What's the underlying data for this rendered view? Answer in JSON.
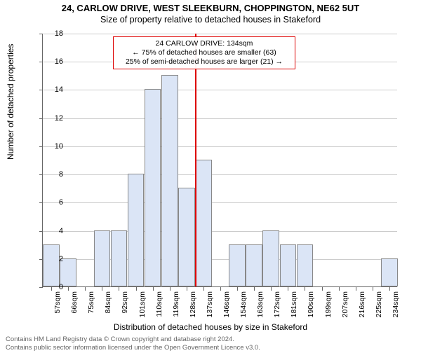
{
  "title": "24, CARLOW DRIVE, WEST SLEEKBURN, CHOPPINGTON, NE62 5UT",
  "subtitle": "Size of property relative to detached houses in Stakeford",
  "ylabel": "Number of detached properties",
  "xlabel": "Distribution of detached houses by size in Stakeford",
  "footer_line1": "Contains HM Land Registry data © Crown copyright and database right 2024.",
  "footer_line2": "Contains public sector information licensed under the Open Government Licence v3.0.",
  "chart": {
    "type": "histogram",
    "background_color": "#ffffff",
    "grid_color": "#cccccc",
    "axis_color": "#666666",
    "bar_fill": "#dbe5f6",
    "bar_border": "#888888",
    "ref_color": "#dd0000",
    "ylim": [
      0,
      18
    ],
    "yticks": [
      0,
      2,
      4,
      6,
      8,
      10,
      12,
      14,
      16,
      18
    ],
    "xtick_labels": [
      "57sqm",
      "66sqm",
      "75sqm",
      "84sqm",
      "92sqm",
      "101sqm",
      "110sqm",
      "119sqm",
      "128sqm",
      "137sqm",
      "146sqm",
      "154sqm",
      "163sqm",
      "172sqm",
      "181sqm",
      "190sqm",
      "199sqm",
      "207sqm",
      "216sqm",
      "225sqm",
      "234sqm"
    ],
    "values": [
      3,
      2,
      0,
      4,
      4,
      8,
      14,
      15,
      7,
      9,
      0,
      3,
      3,
      4,
      3,
      3,
      0,
      0,
      0,
      0,
      2
    ],
    "reference_index": 9,
    "title_fontsize": 13,
    "label_fontsize": 12,
    "tick_fontsize": 11
  },
  "annotation": {
    "line1": "24 CARLOW DRIVE: 134sqm",
    "line2": "← 75% of detached houses are smaller (63)",
    "line3": "25% of semi-detached houses are larger (21) →"
  }
}
